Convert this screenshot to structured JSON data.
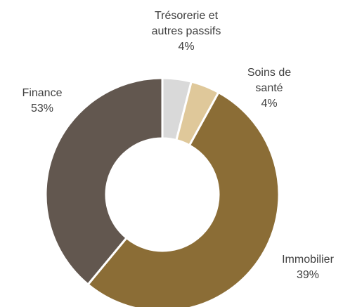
{
  "chart_data": {
    "type": "pie",
    "categories": [
      "Trésorerie et\nautres passifs",
      "Soins de santé",
      "Finance",
      "Immobilier"
    ],
    "values": [
      4,
      4,
      53,
      39
    ],
    "value_labels": [
      "4%",
      "4%",
      "53%",
      "39%"
    ],
    "colors": [
      "#d9d9d9",
      "#dfc89a",
      "#8b6d36",
      "#62574f"
    ]
  }
}
